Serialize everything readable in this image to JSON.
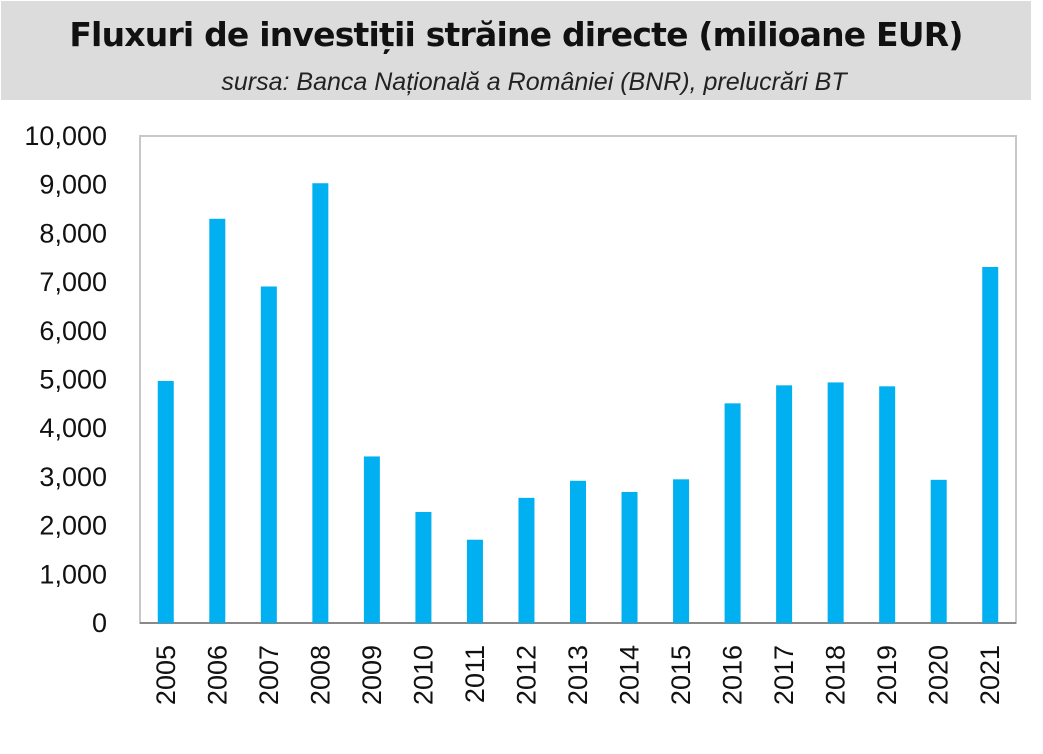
{
  "chart_data": {
    "type": "bar",
    "title": "Fluxuri de investiții străine directe (milioane EUR)",
    "subtitle": "sursa: Banca Națională a României (BNR), prelucrări BT",
    "xlabel": "",
    "ylabel": "",
    "ylim": [
      0,
      10000
    ],
    "yticks": [
      "0",
      "1,000",
      "2,000",
      "3,000",
      "4,000",
      "5,000",
      "6,000",
      "7,000",
      "8,000",
      "9,000",
      "10,000"
    ],
    "categories": [
      "2005",
      "2006",
      "2007",
      "2008",
      "2009",
      "2010",
      "2011",
      "2012",
      "2013",
      "2014",
      "2015",
      "2016",
      "2017",
      "2018",
      "2019",
      "2020",
      "2021"
    ],
    "values": [
      4970,
      8300,
      6910,
      9030,
      3420,
      2280,
      1710,
      2570,
      2920,
      2690,
      2950,
      4510,
      4880,
      4940,
      4860,
      2940,
      7310
    ],
    "bar_color": "#00b0f0",
    "grid": false,
    "legend": "none"
  }
}
